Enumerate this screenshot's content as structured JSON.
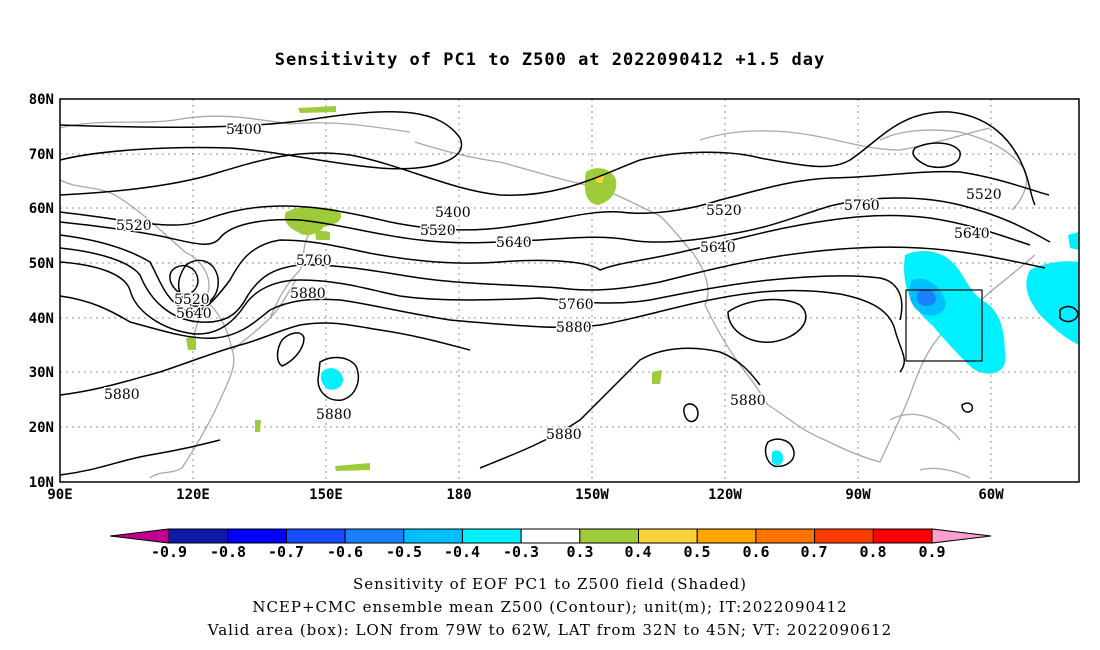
{
  "title": "Sensitivity of PC1 to Z500 at 2022090412 +1.5 day",
  "lat_labels": [
    "80N",
    "70N",
    "60N",
    "50N",
    "40N",
    "30N",
    "20N",
    "10N"
  ],
  "lon_labels": [
    "90E",
    "120E",
    "150E",
    "180",
    "150W",
    "120W",
    "90W",
    "60W"
  ],
  "contour_labels": [
    "5400",
    "5400",
    "5520",
    "5520",
    "5520",
    "5520",
    "5520",
    "5640",
    "5640",
    "5640",
    "5640",
    "5760",
    "5760",
    "5760",
    "5880",
    "5880",
    "5880",
    "5880",
    "5880",
    "5880"
  ],
  "colorbar": {
    "labels": [
      "-0.9",
      "-0.8",
      "-0.7",
      "-0.6",
      "-0.5",
      "-0.4",
      "-0.3",
      "0.3",
      "0.4",
      "0.5",
      "0.6",
      "0.7",
      "0.8",
      "0.9"
    ],
    "colors": [
      "#0b1aa8",
      "#0000ff",
      "#1a4cff",
      "#1a80ff",
      "#00bfff",
      "#00f0ff",
      "#ffffff",
      "#9ecb3a",
      "#fdd23a",
      "#ffa500",
      "#ff7300",
      "#ff3c00",
      "#ff0000"
    ],
    "low_arrow_color": "#c0008c",
    "high_arrow_color": "#ff9fcf"
  },
  "footer": {
    "line1": "Sensitivity of EOF PC1 to Z500 field (Shaded)",
    "line2": "NCEP+CMC ensemble mean Z500 (Contour); unit(m); IT:2022090412",
    "line3": "Valid area (box): LON from 79W to 62W, LAT from 32N to 45N; VT: 2022090612"
  },
  "valid_box": {
    "lon_west": -79,
    "lon_east": -62,
    "lat_south": 32,
    "lat_north": 45
  }
}
